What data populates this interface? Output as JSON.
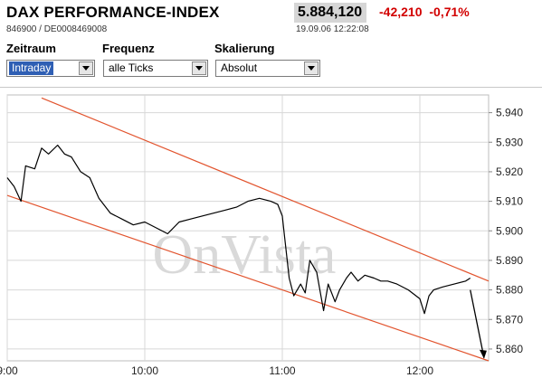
{
  "header": {
    "title": "DAX PERFORMANCE-INDEX",
    "isin": "846900 / DE0008469008",
    "price": "5.884,120",
    "change_abs": "-42,210",
    "change_pct": "-0,71%",
    "timestamp": "19.09.06 12:22:08"
  },
  "controls": {
    "zeitraum": {
      "label": "Zeitraum",
      "value": "Intraday"
    },
    "frequenz": {
      "label": "Frequenz",
      "value": "alle Ticks"
    },
    "skalierung": {
      "label": "Skalierung",
      "value": "Absolut"
    }
  },
  "colors": {
    "change_negative": "#d20000",
    "channel": "#e2542e",
    "line": "#000000",
    "grid": "#d7d7d7"
  },
  "watermark": "OnVista",
  "chart_data": {
    "type": "line",
    "title": "",
    "xlabel": "",
    "ylabel": "",
    "x_ticks": [
      "9:00",
      "10:00",
      "11:00",
      "12:00"
    ],
    "y_ticks": [
      "5.860",
      "5.870",
      "5.880",
      "5.890",
      "5.900",
      "5.910",
      "5.920",
      "5.930",
      "5.940"
    ],
    "x_range": [
      "9:00",
      "12:30"
    ],
    "ylim": [
      5856,
      5946
    ],
    "grid": true,
    "series": [
      {
        "x": [
          "9:00",
          "9:03",
          "9:06",
          "9:08",
          "9:12",
          "9:15",
          "9:18",
          "9:22",
          "9:25",
          "9:28",
          "9:32",
          "9:36",
          "9:40",
          "9:45",
          "9:50",
          "9:55",
          "10:00",
          "10:05",
          "10:10",
          "10:15",
          "10:20",
          "10:25",
          "10:30",
          "10:35",
          "10:40",
          "10:45",
          "10:50",
          "10:55",
          "10:58",
          "11:00",
          "11:01",
          "11:03",
          "11:05",
          "11:08",
          "11:10",
          "11:12",
          "11:15",
          "11:18",
          "11:20",
          "11:23",
          "11:25",
          "11:28",
          "11:30",
          "11:33",
          "11:36",
          "11:40",
          "11:43",
          "11:46",
          "11:50",
          "11:55",
          "12:00",
          "12:02",
          "12:04",
          "12:06",
          "12:10",
          "12:15",
          "12:20",
          "12:22"
        ],
        "y": [
          5918,
          5915,
          5910,
          5922,
          5921,
          5928,
          5926,
          5929,
          5926,
          5925,
          5920,
          5918,
          5911,
          5906,
          5904,
          5902,
          5903,
          5901,
          5899,
          5903,
          5904,
          5905,
          5906,
          5907,
          5908,
          5910,
          5911,
          5910,
          5909,
          5905,
          5898,
          5884,
          5878,
          5882,
          5879,
          5890,
          5886,
          5873,
          5882,
          5876,
          5880,
          5884,
          5886,
          5883,
          5885,
          5884,
          5883,
          5883,
          5882,
          5880,
          5877,
          5872,
          5878,
          5880,
          5881,
          5882,
          5883,
          5884
        ]
      }
    ],
    "channel": [
      {
        "from": [
          "9:15",
          5945
        ],
        "to": [
          "12:30",
          5883
        ]
      },
      {
        "from": [
          "9:00",
          5912
        ],
        "to": [
          "12:30",
          5856
        ]
      }
    ]
  }
}
